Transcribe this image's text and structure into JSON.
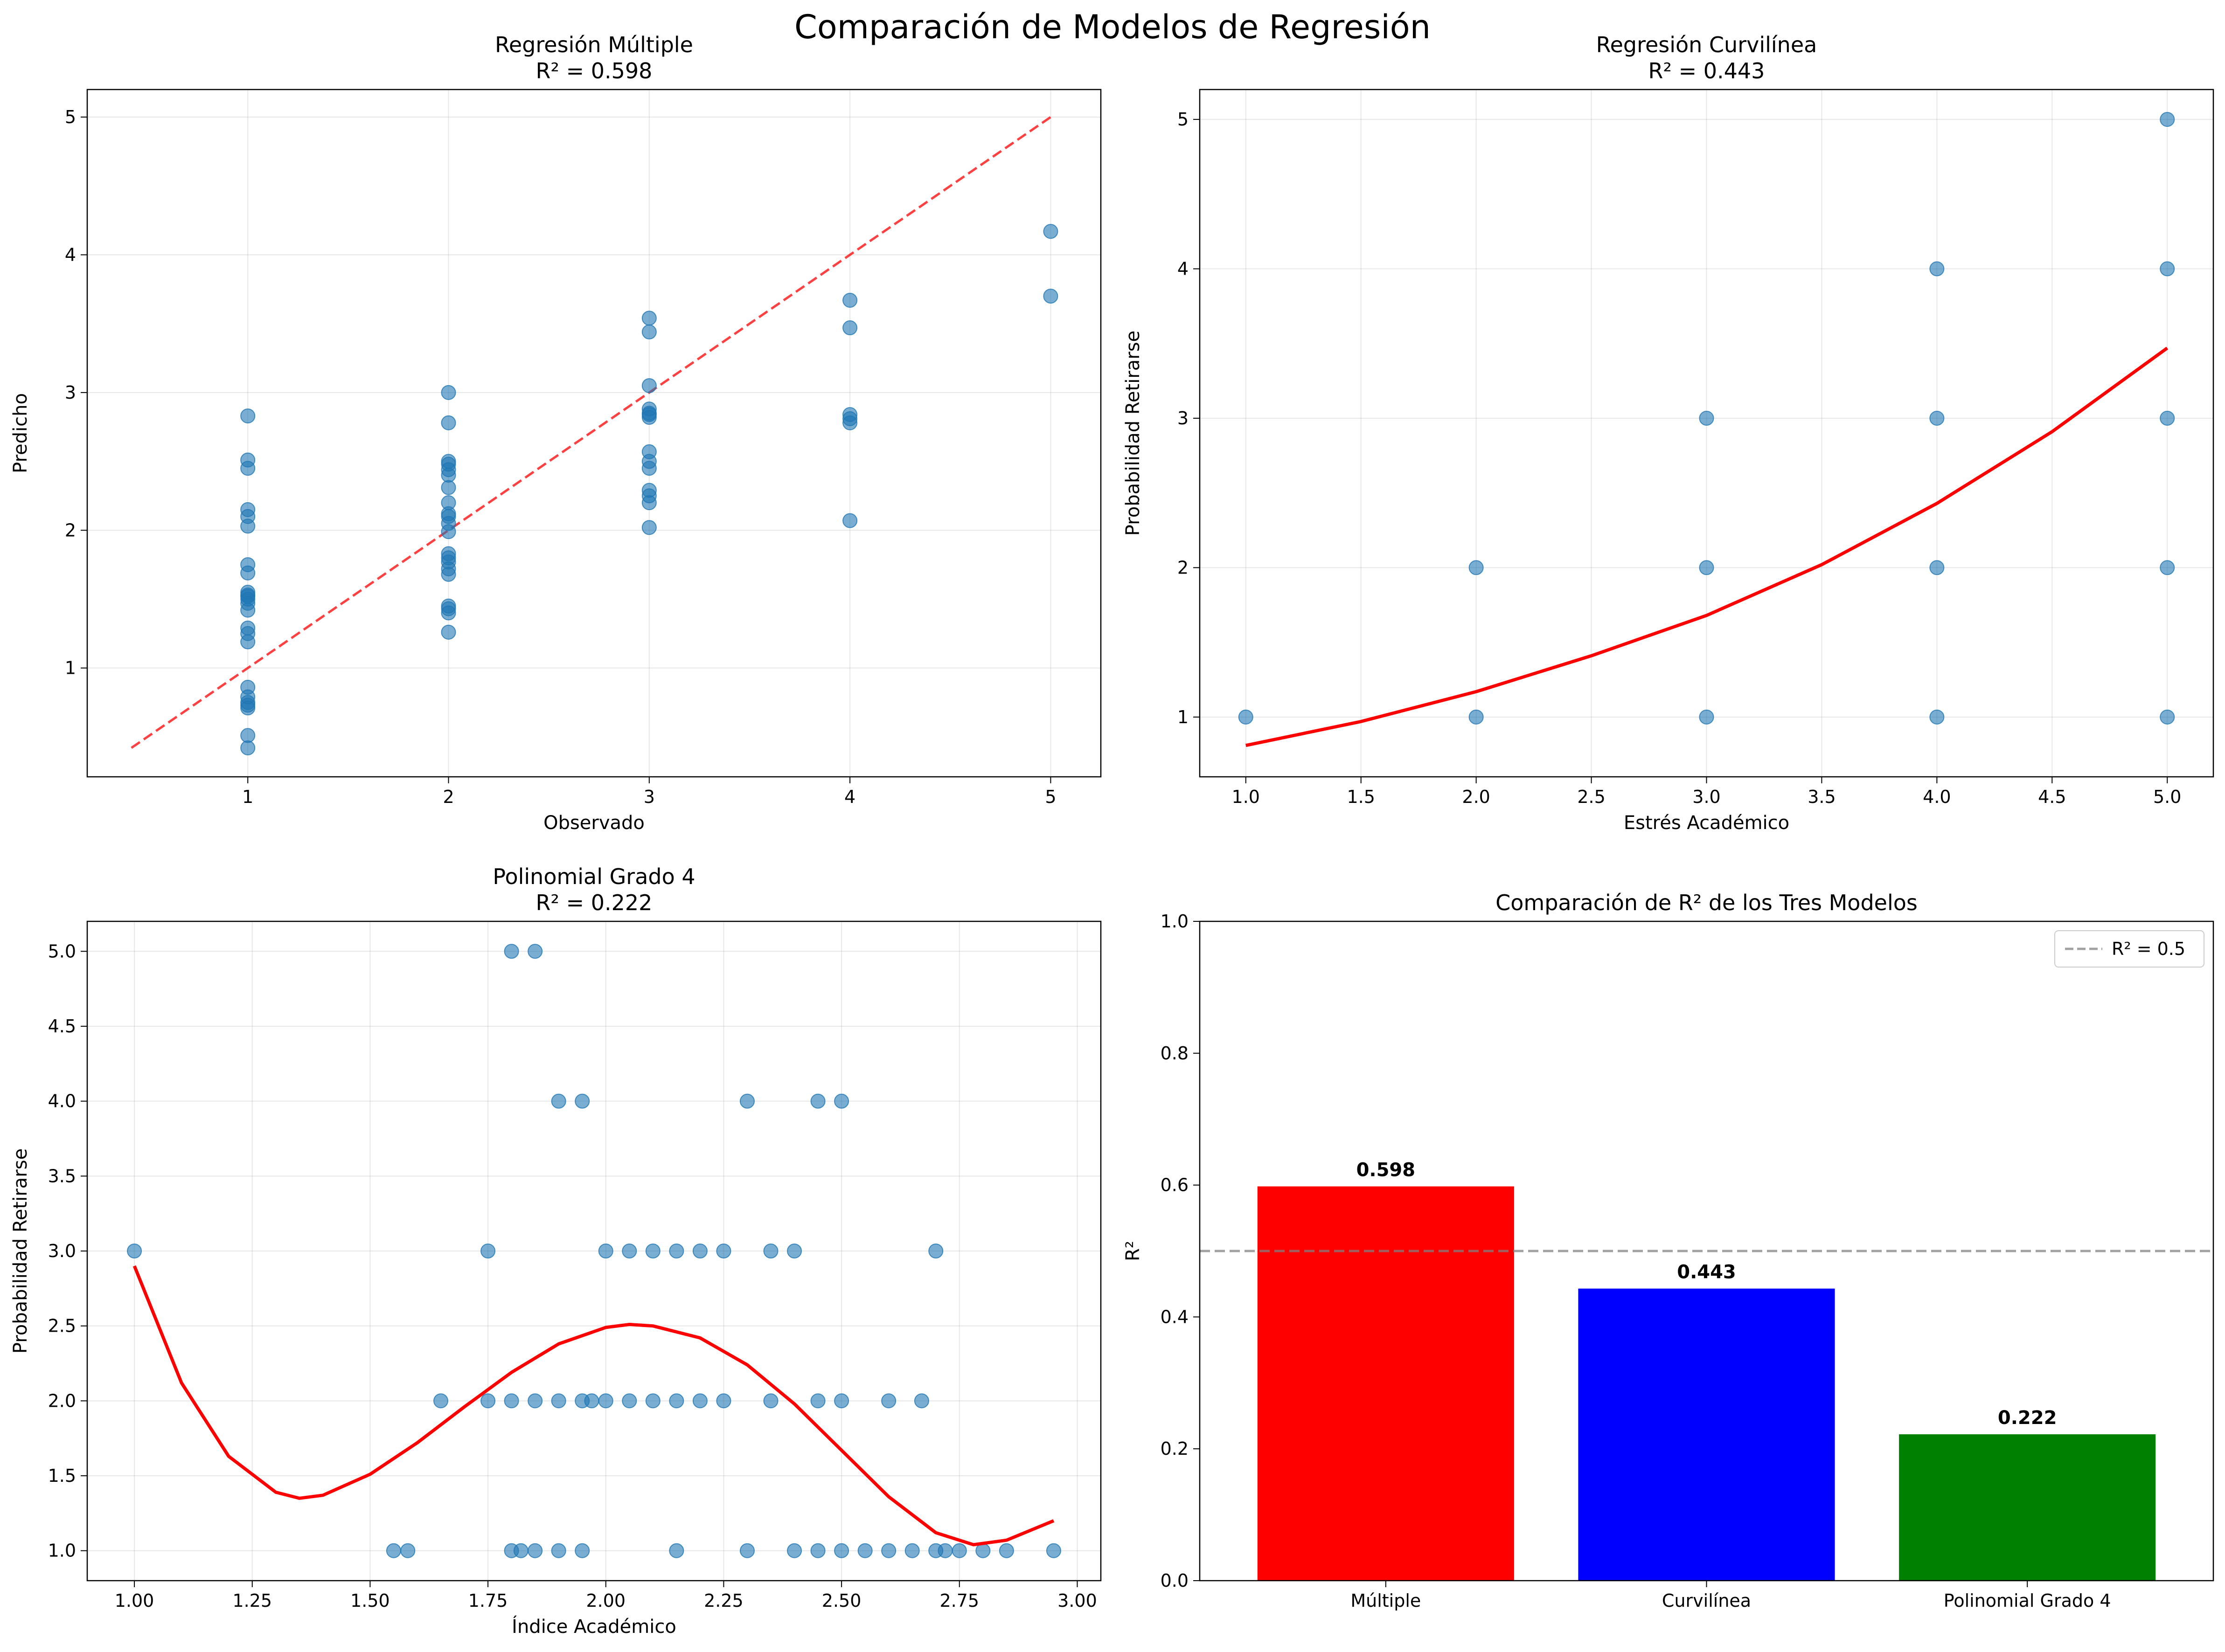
{
  "figure": {
    "suptitle": "Comparación de Modelos de Regresión"
  },
  "colors": {
    "point": "#1f77b4",
    "fit": "#ff0000",
    "diag": "#ff0000",
    "grid": "#b0b0b0",
    "ref": "#808080"
  },
  "chart_data": [
    {
      "type": "scatter",
      "title": "Regresión Múltiple",
      "subtitle": "R² = 0.598",
      "xlabel": "Observado",
      "ylabel": "Predicho",
      "xlim": [
        0.2,
        5.25
      ],
      "ylim": [
        0.21,
        5.2
      ],
      "xticks": [
        1,
        2,
        3,
        4,
        5
      ],
      "yticks": [
        1,
        2,
        3,
        4,
        5
      ],
      "grid": true,
      "reference_line": {
        "style": "dashed",
        "x": [
          0.42,
          5.0
        ],
        "y": [
          0.42,
          5.0
        ]
      },
      "points": {
        "x": [
          1,
          1,
          1,
          1,
          1,
          1,
          1,
          1,
          1,
          1,
          1,
          1,
          1,
          1,
          1,
          1,
          1,
          1,
          1,
          1,
          1,
          1,
          1,
          1,
          2,
          2,
          2,
          2,
          2,
          2,
          2,
          2,
          2,
          2,
          2,
          2,
          2,
          2,
          2,
          2,
          2,
          2,
          2,
          2,
          2,
          3,
          3,
          3,
          3,
          3,
          3,
          3,
          3,
          3,
          3,
          3,
          3,
          3,
          3,
          4,
          4,
          4,
          4,
          4,
          4,
          5,
          5
        ],
        "y": [
          2.83,
          2.51,
          2.45,
          2.15,
          2.1,
          2.03,
          1.75,
          1.69,
          1.55,
          1.52,
          1.5,
          1.47,
          1.42,
          1.29,
          1.25,
          1.19,
          0.86,
          0.79,
          0.75,
          0.73,
          0.71,
          0.51,
          0.42,
          1.53,
          3.0,
          2.78,
          2.5,
          2.48,
          2.44,
          2.4,
          2.31,
          2.2,
          2.12,
          2.1,
          2.05,
          1.99,
          1.83,
          1.77,
          1.72,
          1.68,
          1.45,
          1.43,
          1.4,
          1.26,
          1.8,
          3.54,
          3.44,
          3.05,
          2.88,
          2.85,
          2.82,
          2.57,
          2.5,
          2.45,
          2.29,
          2.25,
          2.2,
          2.02,
          2.84,
          3.67,
          3.47,
          2.84,
          2.81,
          2.78,
          2.07,
          4.17,
          3.7
        ]
      }
    },
    {
      "type": "scatter",
      "title": "Regresión Curvilínea",
      "subtitle": "R² = 0.443",
      "xlabel": "Estrés Académico",
      "ylabel": "Probabilidad Retirarse",
      "xlim": [
        0.8,
        5.2
      ],
      "ylim": [
        0.6,
        5.2
      ],
      "xticks": [
        1.0,
        1.5,
        2.0,
        2.5,
        3.0,
        3.5,
        4.0,
        4.5,
        5.0
      ],
      "yticks": [
        1,
        2,
        3,
        4,
        5
      ],
      "grid": true,
      "points": {
        "x": [
          1,
          2,
          2,
          3,
          3,
          3,
          4,
          4,
          4,
          4,
          5,
          5,
          5,
          5,
          5
        ],
        "y": [
          1,
          2,
          1,
          3,
          2,
          1,
          4,
          3,
          2,
          1,
          5,
          4,
          3,
          2,
          1
        ]
      },
      "fit_curve": {
        "x": [
          1.0,
          1.5,
          2.0,
          2.5,
          3.0,
          3.5,
          4.0,
          4.5,
          5.0
        ],
        "y": [
          0.81,
          0.97,
          1.17,
          1.41,
          1.68,
          2.02,
          2.43,
          2.91,
          3.47
        ]
      }
    },
    {
      "type": "scatter",
      "title": "Polinomial Grado 4",
      "subtitle": "R² = 0.222",
      "xlabel": "Índice Académico",
      "ylabel": "Probabilidad Retirarse",
      "xlim": [
        0.9,
        3.05
      ],
      "ylim": [
        0.8,
        5.2
      ],
      "xticks": [
        1.0,
        1.25,
        1.5,
        1.75,
        2.0,
        2.25,
        2.5,
        2.75,
        3.0
      ],
      "ytick_labels": [
        "1.0",
        "1.5",
        "2.0",
        "2.5",
        "3.0",
        "3.5",
        "4.0",
        "4.5",
        "5.0"
      ],
      "yticks": [
        1.0,
        1.5,
        2.0,
        2.5,
        3.0,
        3.5,
        4.0,
        4.5,
        5.0
      ],
      "grid": true,
      "points": {
        "x": [
          1.8,
          1.85,
          1.9,
          1.95,
          2.3,
          2.45,
          2.5,
          1.0,
          1.75,
          2.0,
          2.05,
          2.1,
          2.15,
          2.2,
          2.25,
          2.35,
          2.4,
          2.7,
          1.65,
          1.75,
          1.8,
          1.85,
          1.9,
          1.95,
          1.97,
          2.0,
          2.05,
          2.1,
          2.15,
          2.2,
          2.25,
          2.35,
          2.45,
          2.5,
          2.6,
          2.67,
          1.55,
          1.58,
          1.8,
          1.82,
          1.85,
          1.9,
          1.95,
          2.15,
          2.3,
          2.4,
          2.45,
          2.5,
          2.55,
          2.6,
          2.65,
          2.7,
          2.72,
          2.75,
          2.8,
          2.85,
          2.95
        ],
        "y": [
          5,
          5,
          4,
          4,
          4,
          4,
          4,
          3,
          3,
          3,
          3,
          3,
          3,
          3,
          3,
          3,
          3,
          3,
          2,
          2,
          2,
          2,
          2,
          2,
          2,
          2,
          2,
          2,
          2,
          2,
          2,
          2,
          2,
          2,
          2,
          2,
          1,
          1,
          1,
          1,
          1,
          1,
          1,
          1,
          1,
          1,
          1,
          1,
          1,
          1,
          1,
          1,
          1,
          1,
          1,
          1,
          1
        ]
      },
      "fit_curve": {
        "x": [
          1.0,
          1.1,
          1.2,
          1.3,
          1.35,
          1.4,
          1.5,
          1.6,
          1.7,
          1.8,
          1.9,
          2.0,
          2.05,
          2.1,
          2.2,
          2.3,
          2.4,
          2.5,
          2.6,
          2.7,
          2.78,
          2.85,
          2.95
        ],
        "y": [
          2.9,
          2.12,
          1.63,
          1.39,
          1.35,
          1.37,
          1.51,
          1.72,
          1.96,
          2.19,
          2.38,
          2.49,
          2.51,
          2.5,
          2.42,
          2.24,
          1.98,
          1.67,
          1.36,
          1.12,
          1.04,
          1.07,
          1.2
        ]
      }
    },
    {
      "type": "bar",
      "title": "Comparación de R² de los Tres Modelos",
      "xlabel": "",
      "ylabel": "R²",
      "categories": [
        "Múltiple",
        "Curvilínea",
        "Polinomial Grado 4"
      ],
      "values": [
        0.598,
        0.443,
        0.222
      ],
      "value_labels": [
        "0.598",
        "0.443",
        "0.222"
      ],
      "bar_colors": [
        "#ff0000",
        "#0000ff",
        "#008000"
      ],
      "ylim": [
        0.0,
        1.0
      ],
      "yticks": [
        0.0,
        0.2,
        0.4,
        0.6,
        0.8,
        1.0
      ],
      "ytick_labels": [
        "0.0",
        "0.2",
        "0.4",
        "0.6",
        "0.8",
        "1.0"
      ],
      "reference_line": {
        "y": 0.5,
        "style": "dashed",
        "label": "R² = 0.5"
      },
      "legend_position": "top-right",
      "grid": false
    }
  ]
}
